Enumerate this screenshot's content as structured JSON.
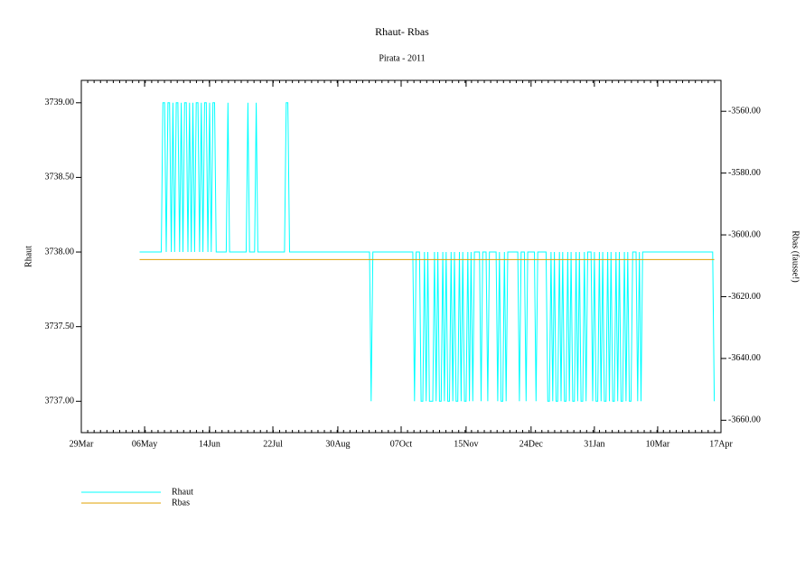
{
  "chart_data": {
    "type": "line",
    "title": "Rhaut-  Rbas",
    "subtitle": "Pirata - 2011",
    "ylabel": "Rhaut",
    "y2label": "Rbas (fausse!)",
    "xlim": [
      0,
      384
    ],
    "xticks": [
      {
        "value": 0,
        "label": "29Mar"
      },
      {
        "value": 38,
        "label": "06May"
      },
      {
        "value": 77,
        "label": "14Jun"
      },
      {
        "value": 115,
        "label": "22Jul"
      },
      {
        "value": 154,
        "label": "30Aug"
      },
      {
        "value": 192,
        "label": "07Oct"
      },
      {
        "value": 231,
        "label": "15Nov"
      },
      {
        "value": 270,
        "label": "24Dec"
      },
      {
        "value": 308,
        "label": "31Jan"
      },
      {
        "value": 346,
        "label": "10Mar"
      },
      {
        "value": 384,
        "label": "17Apr"
      }
    ],
    "ylim": [
      3736.79,
      3739.15
    ],
    "yticks": [
      {
        "value": 3737,
        "label": "3737.00"
      },
      {
        "value": 3737.5,
        "label": "3737.50"
      },
      {
        "value": 3738,
        "label": "3738.00"
      },
      {
        "value": 3738.5,
        "label": "3738.50"
      },
      {
        "value": 3739,
        "label": "3739.00"
      }
    ],
    "y2lim": [
      -3664,
      -3550
    ],
    "y2ticks": [
      {
        "value": -3660,
        "label": "-3660.00"
      },
      {
        "value": -3640,
        "label": "-3640.00"
      },
      {
        "value": -3620,
        "label": "-3620.00"
      },
      {
        "value": -3600,
        "label": "-3600.00"
      },
      {
        "value": -3580,
        "label": "-3580.00"
      },
      {
        "value": -3560,
        "label": "-3560.00"
      }
    ],
    "series": [
      {
        "name": "Rhaut",
        "color": "#00ffff",
        "x": [
          35,
          48,
          49,
          50,
          51,
          52,
          53,
          54,
          55,
          56,
          57,
          58,
          59,
          60,
          61,
          62,
          63,
          64,
          65,
          66,
          67,
          68,
          69,
          70,
          71,
          72,
          73,
          74,
          75,
          76,
          77,
          78,
          79,
          80,
          81,
          87,
          88,
          89,
          99,
          100,
          101,
          104,
          105,
          106,
          122,
          123,
          124,
          125,
          173,
          174,
          175,
          199,
          200,
          201,
          203,
          204,
          205,
          206,
          207,
          208,
          209,
          210,
          211,
          212,
          213,
          214,
          215,
          216,
          217,
          218,
          219,
          220,
          221,
          222,
          223,
          224,
          225,
          226,
          227,
          228,
          229,
          230,
          231,
          232,
          233,
          234,
          235,
          236,
          239,
          240,
          241,
          243,
          244,
          245,
          249,
          250,
          251,
          252,
          253,
          254,
          255,
          256,
          262,
          263,
          264,
          266,
          267,
          268,
          272,
          273,
          274,
          279,
          280,
          281,
          282,
          283,
          284,
          285,
          286,
          287,
          288,
          289,
          290,
          291,
          292,
          293,
          294,
          295,
          296,
          297,
          298,
          299,
          300,
          301,
          302,
          303,
          304,
          306,
          307,
          308,
          309,
          310,
          311,
          312,
          313,
          314,
          315,
          316,
          317,
          318,
          319,
          320,
          321,
          322,
          323,
          324,
          325,
          326,
          327,
          328,
          329,
          330,
          331,
          333,
          334,
          335,
          336,
          337,
          379,
          380
        ],
        "values": [
          3738,
          3738,
          3739,
          3739,
          3738,
          3739,
          3739,
          3738,
          3739,
          3738,
          3739,
          3739,
          3738,
          3739,
          3738,
          3739,
          3739,
          3738,
          3739,
          3738,
          3739,
          3738,
          3739,
          3739,
          3738,
          3739,
          3738,
          3739,
          3739,
          3738,
          3739,
          3738,
          3739,
          3739,
          3738,
          3738,
          3739,
          3738,
          3738,
          3739,
          3738,
          3738,
          3739,
          3738,
          3738,
          3739,
          3739,
          3738,
          3738,
          3737,
          3738,
          3738,
          3737,
          3738,
          3738,
          3737,
          3737,
          3738,
          3737,
          3738,
          3737,
          3737,
          3737,
          3738,
          3737,
          3738,
          3737,
          3737,
          3738,
          3737,
          3738,
          3737,
          3737,
          3738,
          3737,
          3738,
          3737,
          3737,
          3738,
          3737,
          3738,
          3737,
          3737,
          3738,
          3737,
          3738,
          3737,
          3738,
          3738,
          3737,
          3738,
          3738,
          3737,
          3738,
          3738,
          3737,
          3738,
          3737,
          3737,
          3738,
          3737,
          3738,
          3738,
          3737,
          3738,
          3738,
          3737,
          3738,
          3738,
          3737,
          3738,
          3738,
          3737,
          3737,
          3738,
          3737,
          3738,
          3737,
          3737,
          3738,
          3737,
          3738,
          3737,
          3737,
          3738,
          3737,
          3738,
          3737,
          3737,
          3738,
          3737,
          3738,
          3737,
          3737,
          3738,
          3737,
          3738,
          3738,
          3737,
          3738,
          3737,
          3737,
          3738,
          3737,
          3738,
          3737,
          3737,
          3738,
          3737,
          3738,
          3737,
          3737,
          3738,
          3737,
          3738,
          3737,
          3737,
          3738,
          3737,
          3738,
          3737,
          3737,
          3738,
          3738,
          3737,
          3738,
          3737,
          3738,
          3738,
          3737
        ]
      },
      {
        "name": "Rbas",
        "color": "#e0a000",
        "axis": "y2",
        "x": [
          35,
          380
        ],
        "values": [
          -3608,
          -3608
        ]
      }
    ]
  }
}
